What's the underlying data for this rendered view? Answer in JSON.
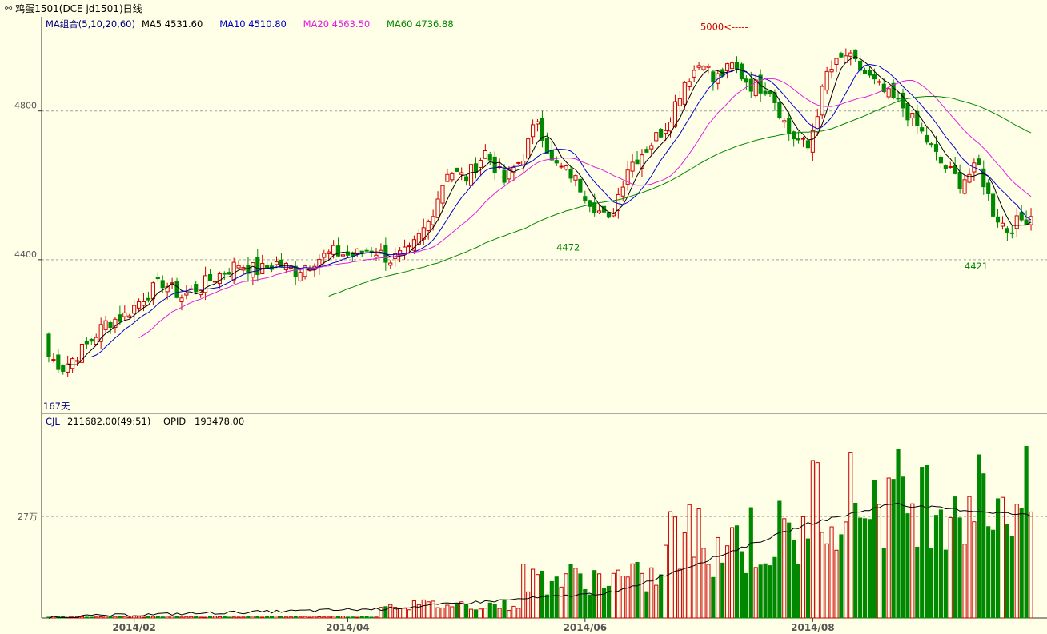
{
  "window": {
    "title_icon": "chain-link-icon",
    "title": "鸡蛋1501(DCE jd1501)日线"
  },
  "price_legend": {
    "group_label": "MA组合(5,10,20,60)",
    "items": [
      {
        "label": "MA5",
        "value": "4531.60",
        "color": "#000000"
      },
      {
        "label": "MA10",
        "value": "4510.80",
        "color": "#0000cc"
      },
      {
        "label": "MA20",
        "value": "4563.50",
        "color": "#e020e0"
      },
      {
        "label": "MA60",
        "value": "4736.88",
        "color": "#008800"
      }
    ]
  },
  "volume_legend": {
    "cjl_label": "CJL",
    "cjl_value": "211682.00(49:51)",
    "opid_label": "OPID",
    "opid_value": "193478.00"
  },
  "colors": {
    "background": "#ffffe8",
    "up": "#cc0000",
    "down": "#008800",
    "grid": "#a0a0a0",
    "border": "#000000"
  },
  "chart_data": [
    {
      "type": "candlestick",
      "name": "price",
      "y_ticks": [
        {
          "value": 4800,
          "label": "4800"
        },
        {
          "value": 4400,
          "label": "4400"
        }
      ],
      "ylim": [
        4000,
        5040
      ],
      "x_ticks": [
        {
          "index": 18,
          "label": "2014/02"
        },
        {
          "index": 63,
          "label": "2014/04"
        },
        {
          "index": 113,
          "label": "2014/06"
        },
        {
          "index": 161,
          "label": "2014/08"
        }
      ],
      "annotations": [
        {
          "text": "5000<-----",
          "index": 139,
          "value": 5000,
          "color": "#cc0000"
        },
        {
          "text": "4472",
          "index": 109,
          "value": 4472,
          "color": "#008800"
        },
        {
          "text": "4421",
          "index": 195,
          "value": 4421,
          "color": "#008800"
        },
        {
          "text": "167天",
          "index": 0,
          "value": 4000,
          "color": "#000080"
        }
      ],
      "candles": [],
      "ma": {
        "MA5": [],
        "MA10": [],
        "MA20": [],
        "MA60": []
      }
    },
    {
      "type": "bar",
      "name": "volume",
      "y_ticks": [
        {
          "value": 270000,
          "label": "27万"
        }
      ],
      "ylim": [
        0,
        500000
      ],
      "values": [],
      "open_interest": []
    }
  ]
}
